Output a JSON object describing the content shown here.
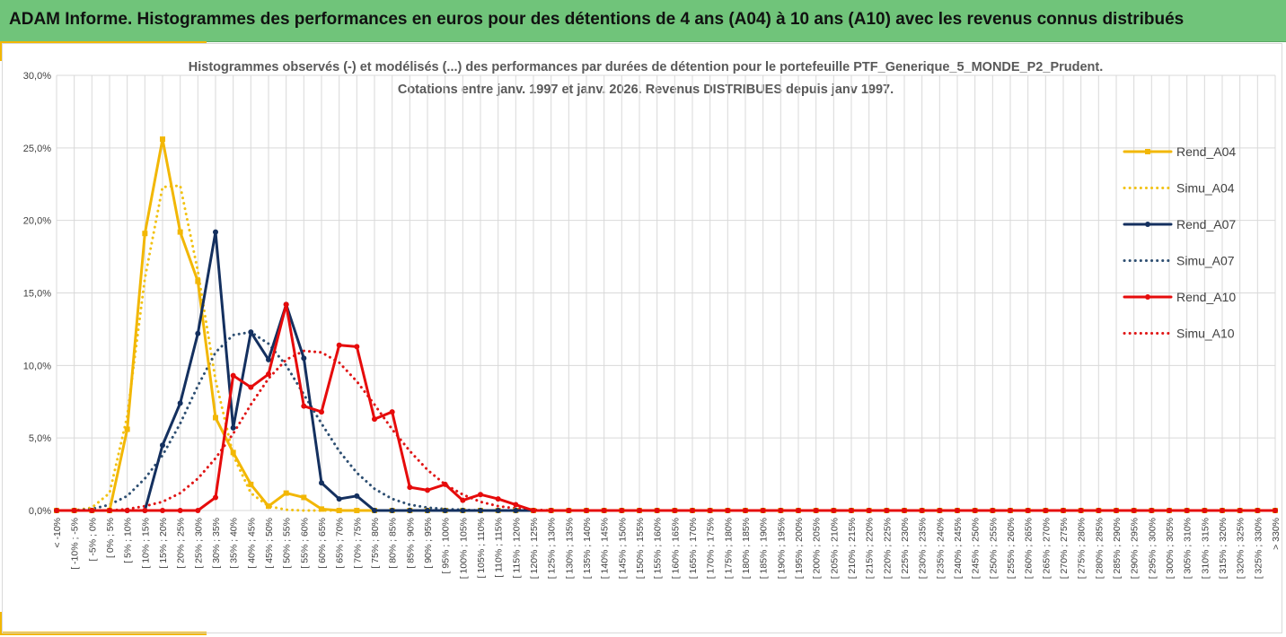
{
  "banner": {
    "title": "ADAM Informe. Histogrammes des performances en euros pour des détentions de 4 ans (A04) à 10 ans (A10) avec les revenus connus distribués"
  },
  "colors": {
    "banner": "#70c47a",
    "accent": "#f2b705",
    "rend_a04": "#f2b705",
    "simu_a04": "#f2c214",
    "rend_a07": "#14305f",
    "simu_a07": "#2e4f72",
    "rend_a10": "#e60b0b",
    "simu_a10": "#e01515",
    "grid": "#d9d9d9"
  },
  "chart_data": {
    "type": "line",
    "title_lines": [
      "Histogrammes observés (-) et modélisés (...) des performances par durées de détention pour  le portefeuille PTF_Generique_5_MONDE_P2_Prudent.",
      "Cotations  entre janv. 1997 et janv. 2026. Revenus DISTRIBUES depuis janv 1997."
    ],
    "xlabel": "",
    "ylabel": "",
    "ylim": [
      0,
      30
    ],
    "y_ticks": [
      "0,0%",
      "5,0%",
      "10,0%",
      "15,0%",
      "20,0%",
      "25,0%",
      "30,0%"
    ],
    "y_tick_values": [
      0,
      5,
      10,
      15,
      20,
      25,
      30
    ],
    "grid": true,
    "legend_position": "right",
    "categories": [
      "< -10%",
      "[ -10% ; -5%",
      "[ -5% ; 0%",
      "[ 0% ; 5%",
      "[ 5% ; 10%",
      "[ 10% ; 15%",
      "[ 15% ; 20%",
      "[ 20% ; 25%",
      "[ 25% ; 30%",
      "[ 30% ; 35%",
      "[ 35% ; 40%",
      "[ 40% ; 45%",
      "[ 45% ; 50%",
      "[ 50% ; 55%",
      "[ 55% ; 60%",
      "[ 60% ; 65%",
      "[ 65% ; 70%",
      "[ 70% ; 75%",
      "[ 75% ; 80%",
      "[ 80% ; 85%",
      "[ 85% ; 90%",
      "[ 90% ; 95%",
      "[ 95% ; 100%",
      "[ 100% ; 105%",
      "[ 105% ; 110%",
      "[ 110% ; 115%",
      "[ 115% ; 120%",
      "[ 120% ; 125%",
      "[ 125% ; 130%",
      "[ 130% ; 135%",
      "[ 135% ; 140%",
      "[ 140% ; 145%",
      "[ 145% ; 150%",
      "[ 150% ; 155%",
      "[ 155% ; 160%",
      "[ 160% ; 165%",
      "[ 165% ; 170%",
      "[ 170% ; 175%",
      "[ 175% ; 180%",
      "[ 180% ; 185%",
      "[ 185% ; 190%",
      "[ 190% ; 195%",
      "[ 195% ; 200%",
      "[ 200% ; 205%",
      "[ 205% ; 210%",
      "[ 210% ; 215%",
      "[ 215% ; 220%",
      "[ 220% ; 225%",
      "[ 225% ; 230%",
      "[ 230% ; 235%",
      "[ 235% ; 240%",
      "[ 240% ; 245%",
      "[ 245% ; 250%",
      "[ 250% ; 255%",
      "[ 255% ; 260%",
      "[ 260% ; 265%",
      "[ 265% ; 270%",
      "[ 270% ; 275%",
      "[ 275% ; 280%",
      "[ 280% ; 285%",
      "[ 285% ; 290%",
      "[ 290% ; 295%",
      "[ 295% ; 300%",
      "[ 300% ; 305%",
      "[ 305% ; 310%",
      "[ 310% ; 315%",
      "[ 315% ; 320%",
      "[ 320% ; 325%",
      "[ 325% ; 330%",
      "> 330%"
    ],
    "series": [
      {
        "name": "Rend_A04",
        "style": "solid",
        "marker": "square",
        "color": "#f2b705",
        "values": [
          0,
          0,
          0,
          0,
          5.6,
          19.1,
          25.6,
          19.2,
          15.8,
          6.4,
          4.0,
          1.8,
          0.3,
          1.2,
          0.9,
          0.1,
          0,
          0,
          0,
          0,
          0,
          0,
          0,
          0,
          0,
          0,
          0,
          0,
          0,
          0,
          0,
          0,
          0,
          0,
          0,
          0,
          0,
          0,
          0,
          0,
          0,
          0,
          0,
          0,
          0,
          0,
          0,
          0,
          0,
          0,
          0,
          0,
          0,
          0,
          0,
          0,
          0,
          0,
          0,
          0,
          0,
          0,
          0,
          0,
          0,
          0,
          0,
          0,
          0,
          0
        ]
      },
      {
        "name": "Simu_A04",
        "style": "dotted",
        "marker": "none",
        "color": "#f2c214",
        "values": [
          0,
          0,
          0.2,
          1.2,
          6.5,
          16.0,
          22.3,
          22.4,
          16.5,
          9.0,
          3.8,
          1.2,
          0.3,
          0.05,
          0,
          0,
          0,
          0,
          0,
          0,
          0,
          0,
          0,
          0,
          0,
          0,
          0,
          0,
          0,
          0,
          0,
          0,
          0,
          0,
          0,
          0,
          0,
          0,
          0,
          0,
          0,
          0,
          0,
          0,
          0,
          0,
          0,
          0,
          0,
          0,
          0,
          0,
          0,
          0,
          0,
          0,
          0,
          0,
          0,
          0,
          0,
          0,
          0,
          0,
          0,
          0,
          0,
          0,
          0,
          0
        ]
      },
      {
        "name": "Rend_A07",
        "style": "solid",
        "marker": "circle",
        "color": "#14305f",
        "values": [
          0,
          0,
          0,
          0,
          0,
          0,
          4.5,
          7.4,
          12.2,
          19.2,
          5.7,
          12.3,
          10.4,
          14.2,
          10.5,
          1.9,
          0.8,
          1.0,
          0,
          0,
          0,
          0,
          0,
          0,
          0,
          0,
          0,
          0,
          0,
          0,
          0,
          0,
          0,
          0,
          0,
          0,
          0,
          0,
          0,
          0,
          0,
          0,
          0,
          0,
          0,
          0,
          0,
          0,
          0,
          0,
          0,
          0,
          0,
          0,
          0,
          0,
          0,
          0,
          0,
          0,
          0,
          0,
          0,
          0,
          0,
          0,
          0,
          0,
          0,
          0
        ]
      },
      {
        "name": "Simu_A07",
        "style": "dotted",
        "marker": "none",
        "color": "#2e4f72",
        "values": [
          0,
          0,
          0.1,
          0.4,
          1.0,
          2.2,
          3.8,
          6.0,
          8.6,
          10.9,
          12.1,
          12.3,
          11.5,
          10.0,
          8.0,
          6.0,
          4.1,
          2.6,
          1.5,
          0.8,
          0.4,
          0.2,
          0.1,
          0.05,
          0,
          0,
          0,
          0,
          0,
          0,
          0,
          0,
          0,
          0,
          0,
          0,
          0,
          0,
          0,
          0,
          0,
          0,
          0,
          0,
          0,
          0,
          0,
          0,
          0,
          0,
          0,
          0,
          0,
          0,
          0,
          0,
          0,
          0,
          0,
          0,
          0,
          0,
          0,
          0,
          0,
          0,
          0,
          0,
          0,
          0
        ]
      },
      {
        "name": "Rend_A10",
        "style": "solid",
        "marker": "circle",
        "color": "#e60b0b",
        "values": [
          0,
          0,
          0,
          0,
          0,
          0,
          0,
          0,
          0,
          0.9,
          9.3,
          8.5,
          9.4,
          14.2,
          7.2,
          6.8,
          11.4,
          11.3,
          6.3,
          6.8,
          1.6,
          1.4,
          1.8,
          0.7,
          1.1,
          0.8,
          0.4,
          0,
          0,
          0,
          0,
          0,
          0,
          0,
          0,
          0,
          0,
          0,
          0,
          0,
          0,
          0,
          0,
          0,
          0,
          0,
          0,
          0,
          0,
          0,
          0,
          0,
          0,
          0,
          0,
          0,
          0,
          0,
          0,
          0,
          0,
          0,
          0,
          0,
          0,
          0,
          0,
          0,
          0,
          0
        ]
      },
      {
        "name": "Simu_A10",
        "style": "dotted",
        "marker": "none",
        "color": "#e01515",
        "values": [
          0,
          0,
          0,
          0,
          0.1,
          0.3,
          0.6,
          1.2,
          2.2,
          3.6,
          5.3,
          7.3,
          9.1,
          10.4,
          11.0,
          10.9,
          10.2,
          8.9,
          7.3,
          5.6,
          4.1,
          2.8,
          1.8,
          1.1,
          0.6,
          0.3,
          0.15,
          0.05,
          0,
          0,
          0,
          0,
          0,
          0,
          0,
          0,
          0,
          0,
          0,
          0,
          0,
          0,
          0,
          0,
          0,
          0,
          0,
          0,
          0,
          0,
          0,
          0,
          0,
          0,
          0,
          0,
          0,
          0,
          0,
          0,
          0,
          0,
          0,
          0,
          0,
          0,
          0,
          0,
          0,
          0
        ]
      }
    ]
  }
}
